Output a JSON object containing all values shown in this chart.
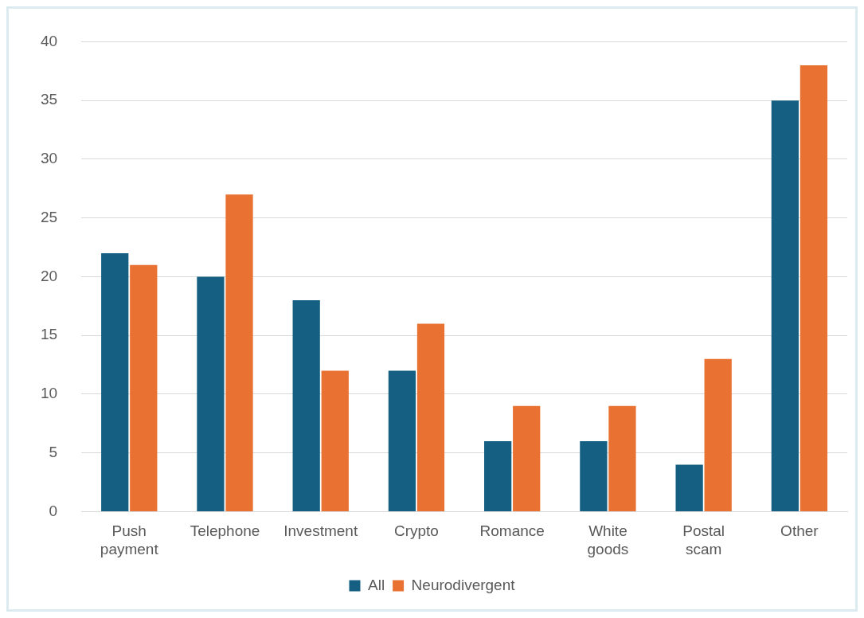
{
  "chart_data": {
    "type": "bar",
    "categories": [
      "Push payment",
      "Telephone",
      "Investment",
      "Crypto",
      "Romance",
      "White goods",
      "Postal scam",
      "Other"
    ],
    "series": [
      {
        "name": "All",
        "color": "#156082",
        "values": [
          22,
          20,
          18,
          12,
          6,
          6,
          4,
          35
        ]
      },
      {
        "name": "Neurodivergent",
        "color": "#e97132",
        "values": [
          21,
          27,
          12,
          16,
          9,
          9,
          13,
          38
        ]
      }
    ],
    "ylim": [
      0,
      40
    ],
    "yticks": [
      0,
      5,
      10,
      15,
      20,
      25,
      30,
      35,
      40
    ],
    "grid": "y",
    "legend": "bottom"
  }
}
